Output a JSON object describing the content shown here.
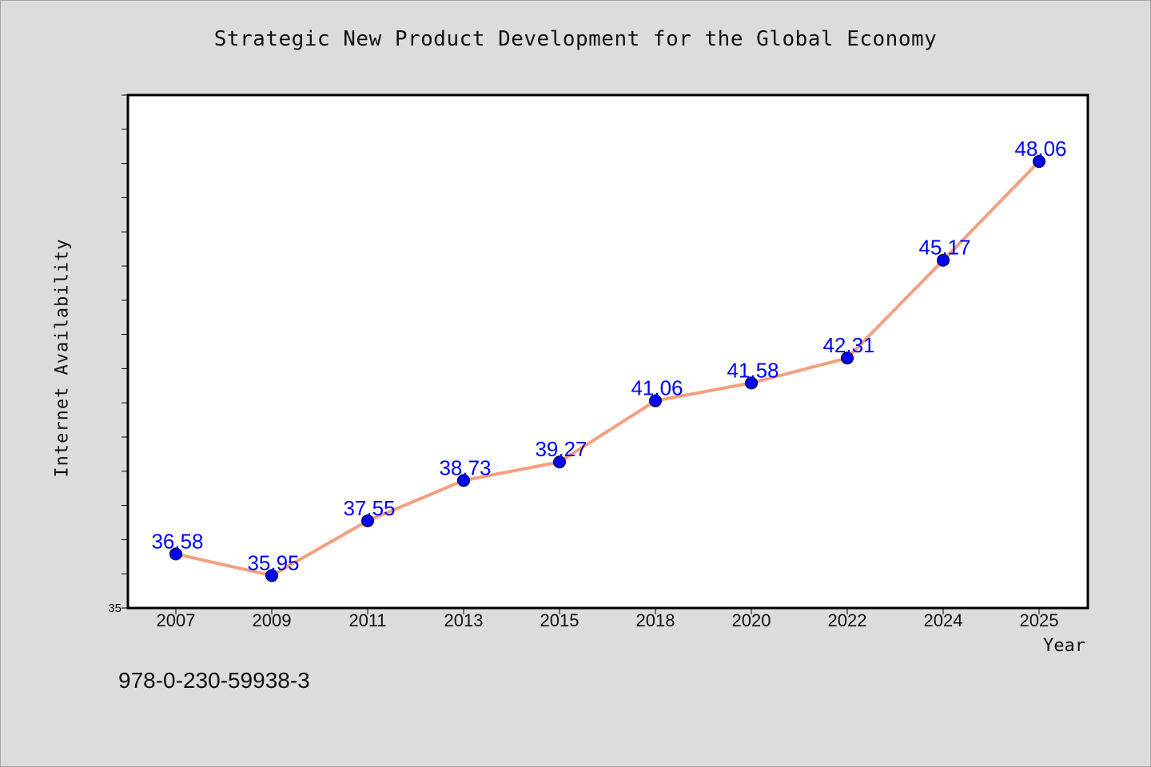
{
  "chart_data": {
    "type": "line",
    "title": "Strategic New Product Development for the Global Economy",
    "xlabel": "Year",
    "ylabel": "Internet Availability",
    "categories": [
      "2007",
      "2009",
      "2011",
      "2013",
      "2015",
      "2018",
      "2020",
      "2022",
      "2024",
      "2025"
    ],
    "series": [
      {
        "values": [
          36.58,
          35.95,
          37.55,
          38.73,
          39.27,
          41.06,
          41.58,
          42.31,
          45.17,
          48.06
        ]
      }
    ],
    "data_labels": [
      "36.58",
      "35.95",
      "37.55",
      "38.73",
      "39.27",
      "41.06",
      "41.58",
      "42.31",
      "45.17",
      "48.06"
    ],
    "ylim": [
      35,
      50
    ],
    "ytick_step": 1,
    "y_tick_labels_shown": [
      "35"
    ],
    "grid": false,
    "legend": "none",
    "colors": {
      "line": "#f4a07f",
      "marker": "#0000ff",
      "data_label": "#0000ff",
      "plot_background": "#ffffff",
      "page_background": "#dcdcdc"
    }
  },
  "footnote": "978-0-230-59938-3"
}
